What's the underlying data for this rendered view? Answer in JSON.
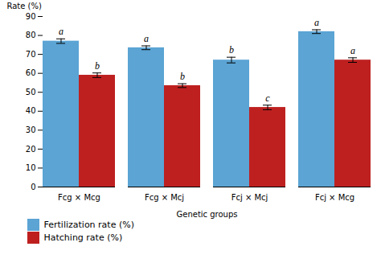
{
  "chart_data": {
    "type": "bar",
    "xlabel": "Genetic groups",
    "ylabel": "Rate (%)",
    "categories": [
      "Fcg × Mcg",
      "Fcg × Mcj",
      "Fcj × Mcj",
      "Fcj × Mcg"
    ],
    "series": [
      {
        "name": "Fertilization rate (%)",
        "color": "#5BA4D4",
        "values": [
          77,
          73.5,
          67,
          82
        ],
        "errors": [
          1.2,
          1.0,
          1.5,
          1.0
        ],
        "labels": [
          "a",
          "a",
          "b",
          "a"
        ]
      },
      {
        "name": "Hatching rate (%)",
        "color": "#BE2020",
        "values": [
          59,
          53.5,
          42,
          67
        ],
        "errors": [
          1.2,
          1.0,
          1.2,
          1.2
        ],
        "labels": [
          "b",
          "b",
          "c",
          "a"
        ]
      }
    ],
    "ylim": [
      0,
      90
    ],
    "yticks": [
      0,
      10,
      20,
      30,
      40,
      50,
      60,
      70,
      80,
      90
    ],
    "grid": false,
    "legend": "bottom"
  }
}
